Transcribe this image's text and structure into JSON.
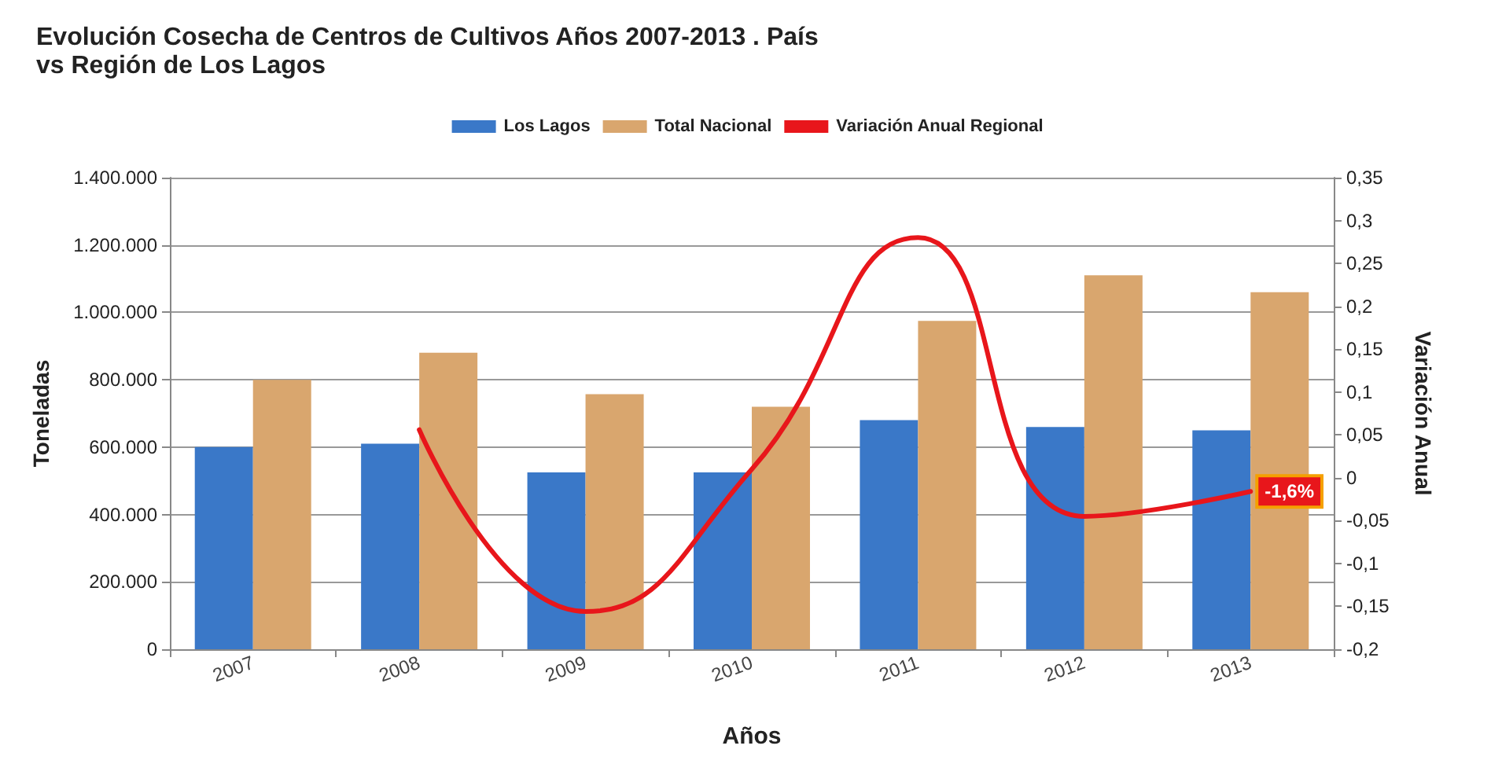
{
  "chart_data": {
    "type": "bar",
    "title": "Evolución Cosecha de Centros de Cultivos Años 2007-2013 . País vs Región de Los Lagos",
    "categories": [
      "2007",
      "2008",
      "2009",
      "2010",
      "2011",
      "2012",
      "2013"
    ],
    "series": [
      {
        "name": "Los Lagos",
        "color": "#3a78c8",
        "values": [
          600000,
          610000,
          525000,
          525000,
          680000,
          660000,
          650000
        ]
      },
      {
        "name": "Total Nacional",
        "color": "#d9a66e",
        "values": [
          800000,
          880000,
          757000,
          720000,
          975000,
          1110000,
          1060000
        ]
      },
      {
        "name": "Variación Anual Regional",
        "type": "line",
        "axis": "y2",
        "color": "#e8161b",
        "marker": "none",
        "values": [
          null,
          0.056,
          -0.156,
          0.01,
          0.28,
          -0.045,
          -0.016
        ],
        "value_labels": [
          null,
          null,
          null,
          null,
          null,
          null,
          "-1,6%"
        ]
      }
    ],
    "xlabel": "Años",
    "ylabel": "Toneladas",
    "y2label": "Variación Anual",
    "ylim": [
      0,
      1400000
    ],
    "yticks": [
      {
        "value": 0,
        "label": "0"
      },
      {
        "value": 200000,
        "label": "200.000"
      },
      {
        "value": 400000,
        "label": "400.000"
      },
      {
        "value": 600000,
        "label": "600.000"
      },
      {
        "value": 800000,
        "label": "800.000"
      },
      {
        "value": 1000000,
        "label": "1.000.000"
      },
      {
        "value": 1200000,
        "label": "1.200.000"
      },
      {
        "value": 1400000,
        "label": "1.400.000"
      }
    ],
    "y2lim": [
      -0.2,
      0.35
    ],
    "y2ticks": [
      {
        "value": -0.2,
        "label": "-0,2"
      },
      {
        "value": -0.15,
        "label": "-0,15"
      },
      {
        "value": -0.1,
        "label": "-0,1"
      },
      {
        "value": -0.05,
        "label": "-0,05"
      },
      {
        "value": 0,
        "label": "0"
      },
      {
        "value": 0.05,
        "label": "0,05"
      },
      {
        "value": 0.1,
        "label": "0,1"
      },
      {
        "value": 0.15,
        "label": "0,15"
      },
      {
        "value": 0.2,
        "label": "0,2"
      },
      {
        "value": 0.25,
        "label": "0,25"
      },
      {
        "value": 0.3,
        "label": "0,3"
      },
      {
        "value": 0.35,
        "label": "0,35"
      }
    ],
    "grid": "y",
    "legend": "top"
  }
}
